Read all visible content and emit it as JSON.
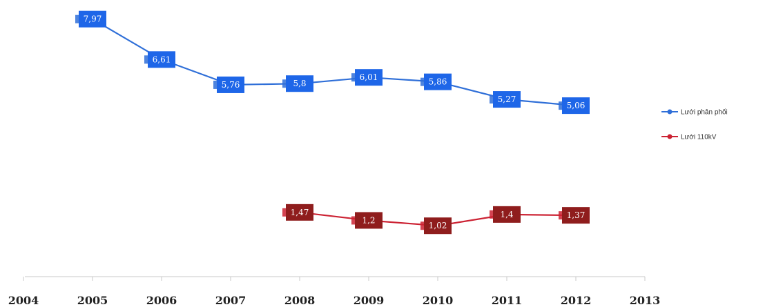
{
  "chart_data": {
    "type": "line",
    "x": [
      2005,
      2006,
      2007,
      2008,
      2009,
      2010,
      2011,
      2012
    ],
    "x_ticks": [
      "2004",
      "2005",
      "2006",
      "2007",
      "2008",
      "2009",
      "2010",
      "2011",
      "2012",
      "2013"
    ],
    "xlim": [
      2004,
      2013
    ],
    "ylim": [
      0,
      8.5
    ],
    "grid": false,
    "legend_position": "right",
    "series": [
      {
        "name": "Lưới phân phối",
        "color": "#2f6fd8",
        "label_bg": "#1e66e8",
        "values": [
          7.97,
          6.61,
          5.76,
          5.8,
          6.01,
          5.86,
          5.27,
          5.06
        ],
        "labels": [
          "7,97",
          "6,61",
          "5,76",
          "5,8",
          "6,01",
          "5,86",
          "5,27",
          "5,06"
        ]
      },
      {
        "name": "Lưới 110kV",
        "color": "#cc2233",
        "label_bg": "#8f1d1d",
        "values": [
          null,
          null,
          null,
          1.47,
          1.2,
          1.02,
          1.4,
          1.37
        ],
        "labels": [
          null,
          null,
          null,
          "1,47",
          "1,2",
          "1,02",
          "1,4",
          "1,37"
        ]
      }
    ]
  }
}
